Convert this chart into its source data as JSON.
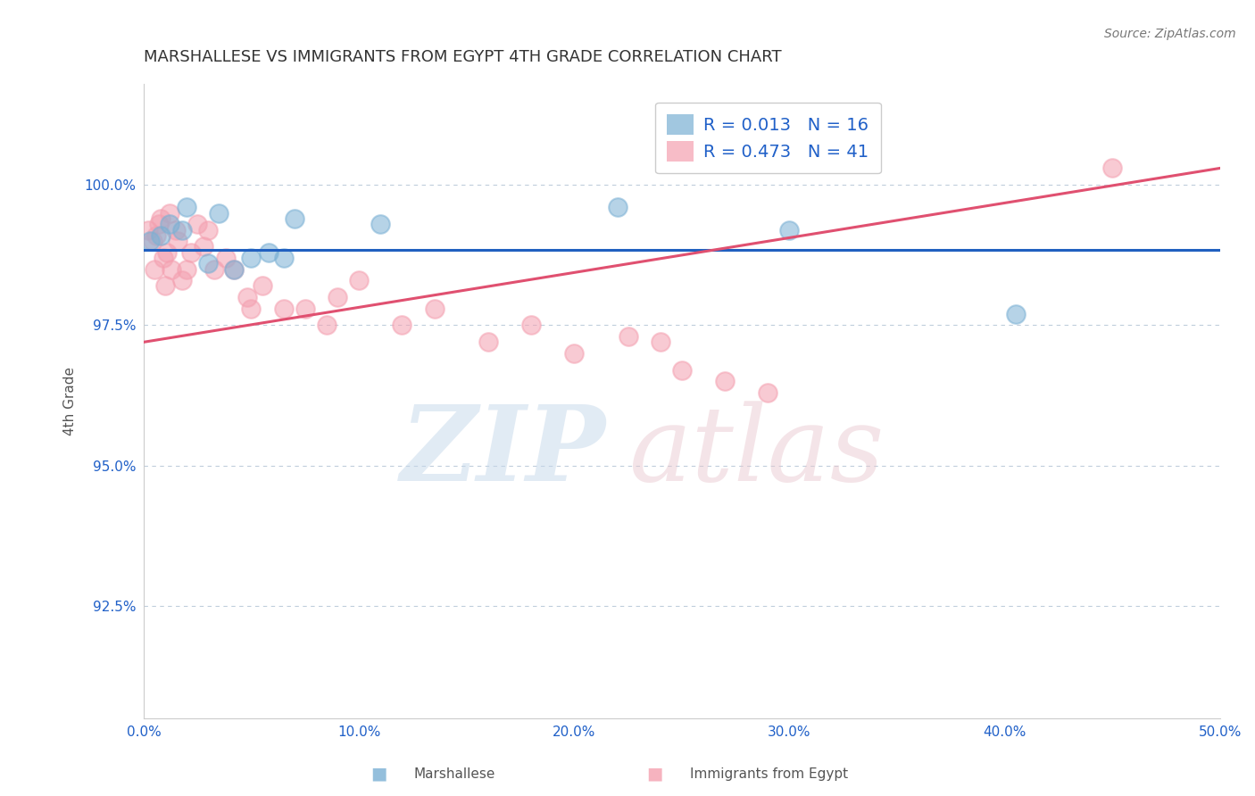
{
  "title": "MARSHALLESE VS IMMIGRANTS FROM EGYPT 4TH GRADE CORRELATION CHART",
  "source": "Source: ZipAtlas.com",
  "ylabel": "4th Grade",
  "xlim": [
    0.0,
    50.0
  ],
  "ylim": [
    90.5,
    101.8
  ],
  "yticks": [
    92.5,
    95.0,
    97.5,
    100.0
  ],
  "xticks": [
    0.0,
    10.0,
    20.0,
    30.0,
    40.0,
    50.0
  ],
  "xtick_labels": [
    "0.0%",
    "10.0%",
    "20.0%",
    "30.0%",
    "40.0%",
    "50.0%"
  ],
  "ytick_labels": [
    "92.5%",
    "95.0%",
    "97.5%",
    "100.0%"
  ],
  "blue_R": 0.013,
  "blue_N": 16,
  "pink_R": 0.473,
  "pink_N": 41,
  "blue_color": "#7ab0d4",
  "pink_color": "#f4a0b0",
  "blue_line_color": "#2060c0",
  "pink_line_color": "#e05070",
  "legend_R_color": "#2060c8",
  "blue_scatter_x": [
    0.3,
    1.2,
    2.0,
    3.5,
    4.2,
    5.0,
    5.8,
    6.5,
    7.0,
    11.0,
    22.0,
    40.5,
    0.8,
    1.8,
    3.0,
    30.0
  ],
  "blue_scatter_y": [
    99.0,
    99.3,
    99.6,
    99.5,
    98.5,
    98.7,
    98.8,
    98.7,
    99.4,
    99.3,
    99.6,
    97.7,
    99.1,
    99.2,
    98.6,
    99.2
  ],
  "pink_scatter_x": [
    0.2,
    0.4,
    0.5,
    0.6,
    0.7,
    0.8,
    0.9,
    1.0,
    1.1,
    1.2,
    1.3,
    1.5,
    1.6,
    1.8,
    2.0,
    2.2,
    2.5,
    2.8,
    3.0,
    3.3,
    3.8,
    4.2,
    5.0,
    5.5,
    6.5,
    7.5,
    9.0,
    10.0,
    12.0,
    13.5,
    16.0,
    18.0,
    20.0,
    22.5,
    24.0,
    25.0,
    27.0,
    29.0,
    45.0,
    8.5,
    4.8
  ],
  "pink_scatter_y": [
    99.2,
    99.0,
    98.5,
    99.1,
    99.3,
    99.4,
    98.7,
    98.2,
    98.8,
    99.5,
    98.5,
    99.2,
    99.0,
    98.3,
    98.5,
    98.8,
    99.3,
    98.9,
    99.2,
    98.5,
    98.7,
    98.5,
    97.8,
    98.2,
    97.8,
    97.8,
    98.0,
    98.3,
    97.5,
    97.8,
    97.2,
    97.5,
    97.0,
    97.3,
    97.2,
    96.7,
    96.5,
    96.3,
    100.3,
    97.5,
    98.0
  ],
  "blue_line_y_at_0": 98.85,
  "blue_line_y_at_50": 98.85,
  "pink_line_y_at_0": 97.2,
  "pink_line_y_at_50": 100.3
}
